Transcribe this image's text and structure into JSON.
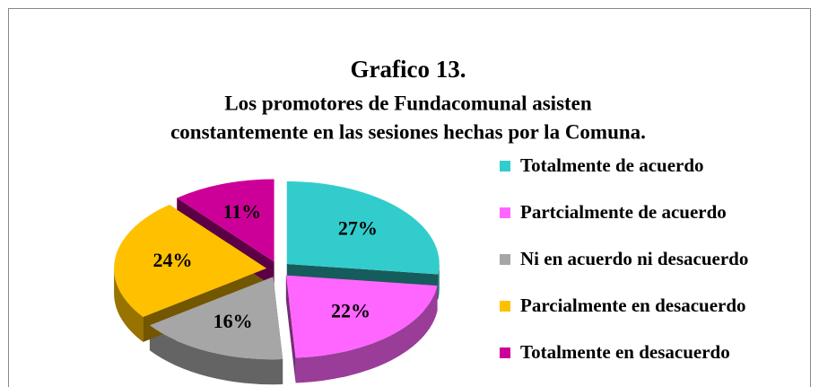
{
  "chart_data": {
    "type": "pie",
    "title": "Grafico 13.",
    "subtitle": [
      "Los promotores de Fundacomunal asisten",
      "constantemente en las sesiones hechas por la Comuna."
    ],
    "categories": [
      "Totalmente de acuerdo",
      "Partcialmente de acuerdo",
      "Ni en acuerdo ni desacuerdo",
      "Parcialmente en desacuerdo",
      "Totalmente en desacuerdo"
    ],
    "values": [
      27,
      22,
      16,
      24,
      11
    ],
    "value_labels": [
      "27%",
      "22%",
      "16%",
      "24%",
      "11%"
    ],
    "colors": [
      "#33CCCC",
      "#FF66FF",
      "#A6A6A6",
      "#FFC000",
      "#CC0099"
    ],
    "legend": "right"
  }
}
